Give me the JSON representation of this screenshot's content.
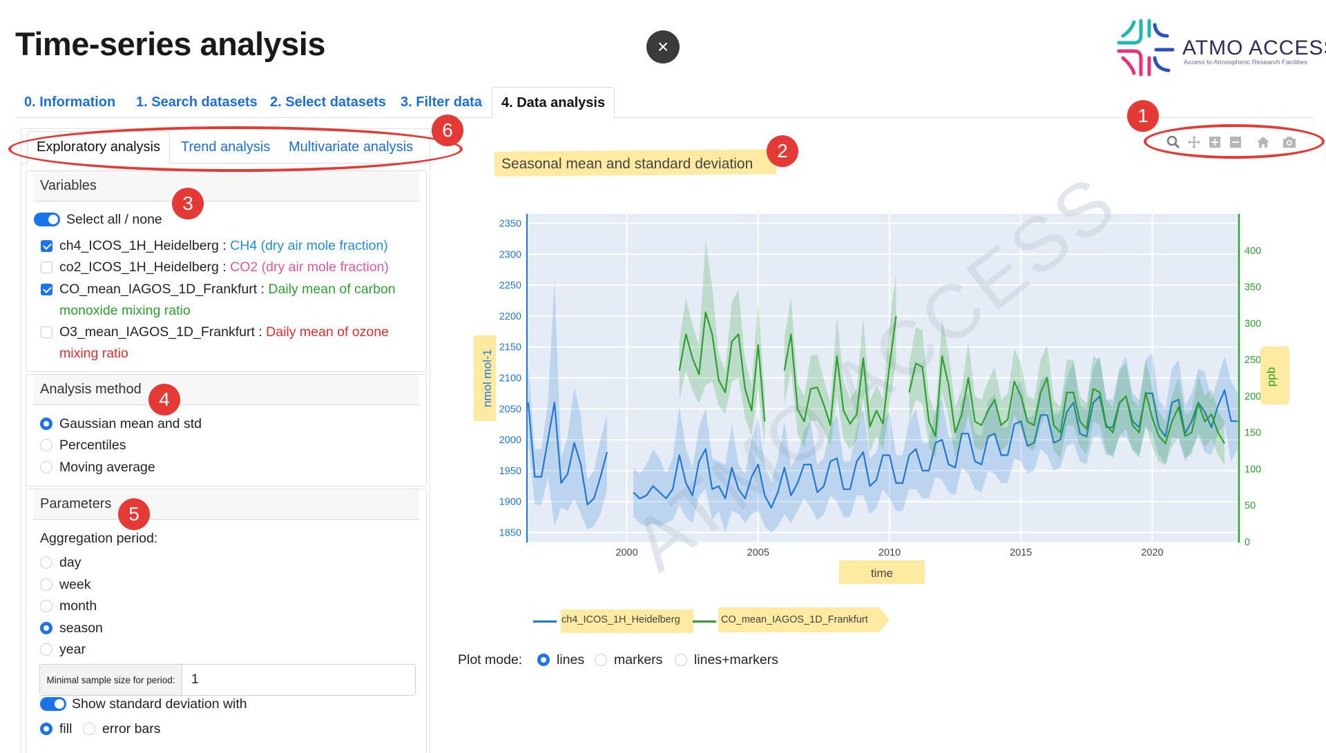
{
  "header": {
    "title": "Time-series analysis",
    "close_label": "×",
    "logo_text": "ATMO ACCESS",
    "logo_subtitle": "Access to Atmospheric Research Facilities"
  },
  "main_tabs": [
    {
      "label": "0. Information",
      "active": false
    },
    {
      "label": "1. Search datasets",
      "active": false
    },
    {
      "label": "2. Select datasets",
      "active": false
    },
    {
      "label": "3. Filter data",
      "active": false
    },
    {
      "label": "4. Data analysis",
      "active": true
    }
  ],
  "sub_tabs": [
    {
      "label": "Exploratory analysis",
      "active": true
    },
    {
      "label": "Trend analysis",
      "active": false
    },
    {
      "label": "Multivariate analysis",
      "active": false
    }
  ],
  "variables": {
    "header": "Variables",
    "select_all_label": "Select all / none",
    "select_all_on": true,
    "items": [
      {
        "name": "ch4_ICOS_1H_Heidelberg",
        "sep": " : ",
        "desc": "CH4 (dry air mole fraction)",
        "desc2": "",
        "checked": true,
        "color": "#1f8fd9"
      },
      {
        "name": "co2_ICOS_1H_Heidelberg",
        "sep": " : ",
        "desc": "CO2 (dry air mole fraction)",
        "desc2": "",
        "checked": false,
        "color": "#e0569a"
      },
      {
        "name": "CO_mean_IAGOS_1D_Frankfurt",
        "sep": " : ",
        "desc": "Daily mean of carbon",
        "desc2": "monoxide mixing ratio",
        "checked": true,
        "color": "#2ca02c"
      },
      {
        "name": "O3_mean_IAGOS_1D_Frankfurt",
        "sep": " : ",
        "desc": "Daily mean of ozone",
        "desc2": "mixing ratio",
        "checked": false,
        "color": "#e22b2b"
      }
    ]
  },
  "analysis_method": {
    "header": "Analysis method",
    "options": [
      "Gaussian mean and std",
      "Percentiles",
      "Moving average"
    ],
    "selected": "Gaussian mean and std"
  },
  "parameters": {
    "header": "Parameters",
    "aggregation_label": "Aggregation period:",
    "aggregation_options": [
      "day",
      "week",
      "month",
      "season",
      "year"
    ],
    "aggregation_selected": "season",
    "min_sample_label": "Minimal sample size for period:",
    "min_sample_value": "1",
    "std_toggle_label": "Show standard deviation with",
    "std_toggle_on": true,
    "std_options": [
      "fill",
      "error bars"
    ],
    "std_selected": "fill"
  },
  "annotations": [
    "1",
    "2",
    "3",
    "4",
    "5",
    "6"
  ],
  "modebar": {
    "icons": [
      "zoom-icon",
      "pan-icon",
      "zoom-in-icon",
      "zoom-out-icon",
      "home-icon",
      "camera-icon"
    ]
  },
  "plot_mode": {
    "label": "Plot mode:",
    "options": [
      "lines",
      "markers",
      "lines+markers"
    ],
    "selected": "lines"
  },
  "chart_data": {
    "type": "line",
    "title": "Seasonal mean and standard deviation",
    "xlabel": "time",
    "ylabel": "nmol mol-1",
    "y2label": "ppb",
    "xlim": [
      1996.2,
      2023.3
    ],
    "ylim": [
      1835,
      2365
    ],
    "y2lim": [
      0,
      450
    ],
    "x_ticks": [
      2000,
      2005,
      2010,
      2015,
      2020
    ],
    "y_ticks": [
      1850,
      1900,
      1950,
      2000,
      2050,
      2100,
      2150,
      2200,
      2250,
      2300,
      2350
    ],
    "y2_ticks": [
      0,
      50,
      100,
      150,
      200,
      250,
      300,
      350,
      400
    ],
    "watermark": "ATMO ACCESS",
    "grid": true,
    "legend_placement": "bottom",
    "series": [
      {
        "name": "ch4_ICOS_1H_Heidelberg",
        "axis": "y",
        "color": "#1f77d4",
        "segments": [
          {
            "x": [
              1996.25,
              1996.5,
              1996.75,
              1997.0,
              1997.25,
              1997.5,
              1997.75,
              1998.0,
              1998.25,
              1998.5,
              1998.75,
              1999.0,
              1999.25
            ],
            "y": [
              2060,
              1940,
              1940,
              2000,
              2060,
              1930,
              1945,
              1995,
              1960,
              1895,
              1905,
              1940,
              1980
            ],
            "std": [
              60,
              45,
              45,
              60,
              200,
              40,
              60,
              90,
              80,
              40,
              45,
              60,
              60
            ]
          },
          {
            "x": [
              2000.25,
              2000.5,
              2000.75,
              2001.0,
              2001.25,
              2001.5,
              2001.75,
              2002.0,
              2002.25,
              2002.5,
              2002.75,
              2003.0,
              2003.25,
              2003.5,
              2003.75,
              2004.0,
              2004.25,
              2004.5,
              2004.75,
              2005.0,
              2005.25,
              2005.5,
              2005.75,
              2006.0,
              2006.25,
              2006.5,
              2006.75,
              2007.0,
              2007.25,
              2007.5,
              2007.75,
              2008.0,
              2008.25,
              2008.5,
              2008.75,
              2009.0,
              2009.25,
              2009.5,
              2009.75,
              2010.0,
              2010.25,
              2010.5,
              2010.75,
              2011.0,
              2011.25,
              2011.5,
              2011.75,
              2012.0,
              2012.25,
              2012.5,
              2012.75,
              2013.0,
              2013.25,
              2013.5,
              2013.75,
              2014.0,
              2014.25,
              2014.5,
              2014.75,
              2015.0,
              2015.25,
              2015.5,
              2015.75,
              2016.0,
              2016.25,
              2016.5,
              2016.75,
              2017.0,
              2017.25,
              2017.5,
              2017.75,
              2018.0,
              2018.25,
              2018.5,
              2018.75,
              2019.0,
              2019.25,
              2019.5,
              2019.75,
              2020.0,
              2020.25,
              2020.5,
              2020.75,
              2021.0,
              2021.25,
              2021.5,
              2021.75,
              2022.0,
              2022.25,
              2022.5,
              2022.75,
              2023.0,
              2023.25
            ],
            "y": [
              1915,
              1905,
              1910,
              1925,
              1915,
              1905,
              1920,
              1975,
              1930,
              1910,
              1965,
              1985,
              1920,
              1925,
              1905,
              1955,
              1920,
              1905,
              1940,
              1960,
              1910,
              1890,
              1915,
              1955,
              1910,
              1930,
              1960,
              1960,
              1915,
              1925,
              1965,
              1970,
              1920,
              1920,
              1965,
              1980,
              1925,
              1935,
              1975,
              1975,
              1930,
              1930,
              1975,
              1985,
              1950,
              1950,
              1995,
              2000,
              1960,
              1955,
              2010,
              2010,
              1965,
              1960,
              2005,
              2010,
              1975,
              1975,
              2025,
              2030,
              1990,
              1995,
              2040,
              2040,
              1995,
              2000,
              2045,
              2060,
              2010,
              2005,
              2060,
              2070,
              2020,
              2020,
              2060,
              2070,
              2030,
              2020,
              2075,
              2075,
              2020,
              2005,
              2060,
              2065,
              2010,
              2030,
              2060,
              2045,
              2020,
              2055,
              2080,
              2030,
              2030
            ],
            "std": [
              40,
              40,
              50,
              60,
              55,
              40,
              50,
              80,
              55,
              45,
              55,
              65,
              50,
              40,
              55,
              70,
              40,
              40,
              60,
              75,
              50,
              40,
              55,
              75,
              45,
              45,
              55,
              70,
              45,
              45,
              55,
              70,
              45,
              45,
              55,
              70,
              45,
              45,
              55,
              70,
              45,
              45,
              55,
              65,
              45,
              45,
              55,
              65,
              45,
              45,
              55,
              65,
              45,
              45,
              55,
              65,
              45,
              45,
              55,
              65,
              45,
              45,
              55,
              65,
              45,
              45,
              55,
              65,
              45,
              45,
              55,
              65,
              45,
              45,
              55,
              65,
              45,
              45,
              55,
              65,
              45,
              45,
              55,
              65,
              45,
              45,
              55,
              65,
              45,
              45,
              55,
              65,
              45
            ]
          }
        ]
      },
      {
        "name": "CO_mean_IAGOS_1D_Frankfurt",
        "axis": "y2",
        "color": "#2ca02c",
        "segments": [
          {
            "x": [
              2002.0,
              2002.25,
              2002.5,
              2002.75,
              2003.0,
              2003.25,
              2003.5,
              2003.75,
              2004.0,
              2004.25,
              2004.5,
              2004.75,
              2005.0,
              2005.25
            ],
            "y": [
              235,
              285,
              252,
              230,
              315,
              285,
              222,
              205,
              275,
              285,
              210,
              180,
              270,
              165
            ],
            "std": [
              40,
              50,
              45,
              40,
              100,
              65,
              35,
              30,
              55,
              60,
              40,
              35,
              60,
              35
            ]
          },
          {
            "x": [
              2006.0,
              2006.25,
              2006.5,
              2006.75,
              2007.0,
              2007.25,
              2007.5,
              2007.75,
              2008.0,
              2008.25,
              2008.5,
              2008.75,
              2009.0,
              2009.25,
              2009.5,
              2009.75,
              2010.0,
              2010.25
            ],
            "y": [
              235,
              285,
              182,
              165,
              210,
              212,
              188,
              160,
              255,
              180,
              162,
              175,
              252,
              158,
              180,
              162,
              242,
              310
            ],
            "std": [
              45,
              50,
              35,
              35,
              45,
              45,
              35,
              30,
              55,
              40,
              35,
              35,
              55,
              35,
              35,
              35,
              55,
              60
            ]
          },
          {
            "x": [
              2010.75,
              2011.0,
              2011.25,
              2011.5,
              2011.75,
              2012.0,
              2012.25,
              2012.5,
              2012.75,
              2013.0,
              2013.25,
              2013.5,
              2013.75,
              2014.0,
              2014.25,
              2014.5,
              2014.75,
              2015.0,
              2015.25,
              2015.5,
              2015.75,
              2016.0,
              2016.25,
              2016.5,
              2016.75,
              2017.0,
              2017.25,
              2017.5,
              2017.75,
              2018.0,
              2018.25,
              2018.5,
              2018.75,
              2019.0,
              2019.25,
              2019.5,
              2019.75,
              2020.0,
              2020.25,
              2020.5,
              2020.75,
              2021.0,
              2021.25,
              2021.5,
              2021.75,
              2022.0,
              2022.25,
              2022.5,
              2022.75
            ],
            "y": [
              205,
              245,
              240,
              165,
              145,
              255,
              215,
              150,
              175,
              225,
              165,
              160,
              180,
              195,
              160,
              168,
              220,
              200,
              165,
              160,
              205,
              225,
              160,
              150,
              205,
              205,
              165,
              155,
              210,
              205,
              160,
              150,
              190,
              200,
              160,
              150,
              205,
              170,
              145,
              135,
              165,
              185,
              145,
              150,
              190,
              165,
              175,
              150,
              135
            ],
            "std": [
              40,
              50,
              50,
              35,
              30,
              50,
              45,
              35,
              35,
              50,
              35,
              35,
              40,
              45,
              35,
              35,
              45,
              45,
              35,
              35,
              45,
              45,
              35,
              35,
              45,
              45,
              35,
              35,
              45,
              45,
              35,
              35,
              45,
              45,
              35,
              35,
              45,
              40,
              35,
              30,
              35,
              40,
              30,
              30,
              40,
              35,
              35,
              30,
              30
            ]
          }
        ]
      }
    ]
  }
}
